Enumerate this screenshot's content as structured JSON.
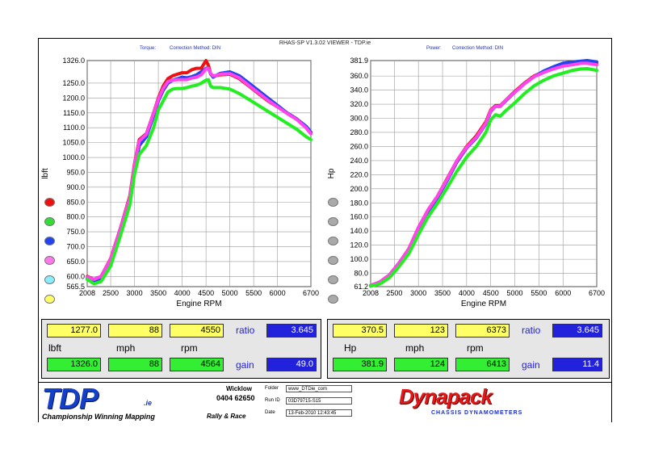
{
  "app_title": "RHAS-SP V1.3.02 VIEWER - TDP.ie",
  "colors": {
    "red": "#ee1111",
    "green": "#22ee22",
    "blue": "#2244ee",
    "pink": "#ff44ee",
    "panel_yellow": "#ffff66",
    "panel_green": "#33ee33",
    "panel_blue": "#2222dd"
  },
  "legend_dots": {
    "left": [
      "#ee1111",
      "#33dd33",
      "#2244ee",
      "#ff77ee",
      "#88eeff",
      "#ffff66"
    ],
    "right": [
      "#aaaaaa",
      "#aaaaaa",
      "#aaaaaa",
      "#aaaaaa",
      "#aaaaaa",
      "#aaaaaa"
    ]
  },
  "chart_data": [
    {
      "type": "line",
      "subtitle_label": "Torque:",
      "correction": "Correction Method: DIN",
      "ylabel": "lbft",
      "xlabel": "Engine RPM",
      "xlim": [
        2008,
        6700
      ],
      "ylim": [
        565.5,
        1326.0
      ],
      "x_ticks": [
        "2008",
        "2500",
        "3000",
        "3500",
        "4000",
        "4500",
        "5000",
        "5500",
        "6000",
        "6700"
      ],
      "x_tick_values": [
        2008,
        2500,
        3000,
        3500,
        4000,
        4500,
        5000,
        5500,
        6000,
        6700
      ],
      "y_ticks": [
        "1326.0",
        "1250.0",
        "1200.0",
        "1150.0",
        "1100.0",
        "1050.0",
        "1000.0",
        "950.0",
        "900.0",
        "850.0",
        "800.0",
        "750.0",
        "700.0",
        "650.0",
        "600.0",
        "565.5"
      ],
      "y_tick_values": [
        1326,
        1250,
        1200,
        1150,
        1100,
        1050,
        1000,
        950,
        900,
        850,
        800,
        750,
        700,
        650,
        600,
        565.5
      ],
      "grid": true,
      "x": [
        2008,
        2150,
        2300,
        2500,
        2700,
        2900,
        3000,
        3100,
        3250,
        3400,
        3500,
        3600,
        3700,
        3800,
        3900,
        4000,
        4100,
        4200,
        4300,
        4400,
        4500,
        4550,
        4600,
        4650,
        4700,
        4800,
        5000,
        5200,
        5400,
        5600,
        5800,
        6000,
        6200,
        6400,
        6600,
        6700
      ],
      "series": [
        {
          "color": "#ee1111",
          "values": [
            600,
            590,
            600,
            660,
            760,
            870,
            980,
            1060,
            1080,
            1150,
            1200,
            1240,
            1265,
            1275,
            1280,
            1285,
            1285,
            1295,
            1300,
            1300,
            1326,
            1310,
            1280,
            1275,
            1275,
            1278,
            1280,
            1265,
            1240,
            1215,
            1190,
            1170,
            1150,
            1130,
            1100,
            1080
          ]
        },
        {
          "color": "#2244ee",
          "values": [
            595,
            585,
            592,
            650,
            750,
            855,
            960,
            1040,
            1070,
            1140,
            1190,
            1225,
            1250,
            1260,
            1265,
            1270,
            1268,
            1272,
            1278,
            1288,
            1300,
            1300,
            1280,
            1270,
            1275,
            1283,
            1288,
            1275,
            1250,
            1225,
            1200,
            1175,
            1150,
            1130,
            1105,
            1085
          ]
        },
        {
          "color": "#ff44ee",
          "values": [
            598,
            590,
            600,
            658,
            758,
            865,
            975,
            1055,
            1078,
            1148,
            1196,
            1232,
            1255,
            1260,
            1262,
            1262,
            1262,
            1267,
            1270,
            1278,
            1298,
            1300,
            1282,
            1274,
            1276,
            1280,
            1282,
            1268,
            1242,
            1217,
            1192,
            1170,
            1148,
            1128,
            1100,
            1080
          ]
        },
        {
          "color": "#22ee22",
          "values": [
            590,
            575,
            583,
            635,
            735,
            840,
            945,
            1010,
            1040,
            1100,
            1160,
            1190,
            1220,
            1230,
            1232,
            1232,
            1235,
            1240,
            1243,
            1250,
            1260,
            1262,
            1240,
            1235,
            1235,
            1235,
            1230,
            1215,
            1195,
            1175,
            1155,
            1135,
            1115,
            1095,
            1070,
            1060
          ]
        }
      ],
      "readout": {
        "values_top": [
          "1277.0",
          "88",
          "4550"
        ],
        "ratio_label": "ratio",
        "ratio": "3.645",
        "unit_labels": [
          "lbft",
          "mph",
          "rpm"
        ],
        "values_bottom": [
          "1326.0",
          "88",
          "4564"
        ],
        "gain_label": "gain",
        "gain": "49.0"
      }
    },
    {
      "type": "line",
      "subtitle_label": "Power:",
      "correction": "Correction Method: DIN",
      "ylabel": "Hp",
      "xlabel": "Engine RPM",
      "xlim": [
        2008,
        6700
      ],
      "ylim": [
        61.2,
        381.9
      ],
      "x_ticks": [
        "2008",
        "2500",
        "3000",
        "3500",
        "4000",
        "4500",
        "5000",
        "5500",
        "6000",
        "6700"
      ],
      "x_tick_values": [
        2008,
        2500,
        3000,
        3500,
        4000,
        4500,
        5000,
        5500,
        6000,
        6700
      ],
      "y_ticks": [
        "381.9",
        "360.0",
        "340.0",
        "320.0",
        "300.0",
        "280.0",
        "260.0",
        "240.0",
        "220.0",
        "200.0",
        "180.0",
        "160.0",
        "140.0",
        "120.0",
        "100.0",
        "80.0",
        "61.2"
      ],
      "y_tick_values": [
        381.9,
        360,
        340,
        320,
        300,
        280,
        260,
        240,
        220,
        200,
        180,
        160,
        140,
        120,
        100,
        80,
        61.2
      ],
      "grid": true,
      "x": [
        2008,
        2200,
        2400,
        2600,
        2800,
        3000,
        3200,
        3400,
        3600,
        3800,
        4000,
        4200,
        4400,
        4500,
        4600,
        4700,
        4800,
        5000,
        5200,
        5400,
        5600,
        5800,
        6000,
        6200,
        6373,
        6500,
        6700
      ],
      "series": [
        {
          "color": "#ee1111",
          "values": [
            62,
            68,
            78,
            95,
            115,
            145,
            170,
            190,
            215,
            240,
            260,
            275,
            295,
            312,
            318,
            318,
            325,
            338,
            350,
            360,
            366,
            371,
            375,
            378,
            380,
            380,
            378
          ]
        },
        {
          "color": "#2244ee",
          "values": [
            62,
            67,
            77,
            94,
            113,
            143,
            168,
            188,
            212,
            238,
            258,
            272,
            292,
            310,
            317,
            317,
            324,
            337,
            349,
            359,
            367,
            373,
            378,
            380,
            381,
            381.9,
            380
          ]
        },
        {
          "color": "#ff44ee",
          "values": [
            63,
            68,
            78,
            95,
            115,
            145,
            170,
            190,
            214,
            240,
            259,
            273,
            293,
            311,
            317,
            317,
            325,
            337,
            349,
            359,
            365,
            370,
            374,
            376,
            378,
            378,
            376
          ]
        },
        {
          "color": "#22ee22",
          "values": [
            62,
            65,
            74,
            90,
            108,
            135,
            160,
            180,
            202,
            225,
            245,
            260,
            280,
            298,
            305,
            303,
            310,
            322,
            335,
            346,
            354,
            360,
            364,
            368,
            370,
            370.5,
            368
          ]
        }
      ],
      "readout": {
        "values_top": [
          "370.5",
          "123",
          "6373"
        ],
        "ratio_label": "ratio",
        "ratio": "3.645",
        "unit_labels": [
          "Hp",
          "mph",
          "rpm"
        ],
        "values_bottom": [
          "381.9",
          "124",
          "6413"
        ],
        "gain_label": "gain",
        "gain": "11.4"
      }
    }
  ],
  "footer": {
    "logo_tdp": "TDP",
    "logo_ie": ".ie",
    "tagline": "Championship Winning Mapping",
    "rally": "Rally & Race",
    "wicklow": "Wicklow",
    "phone": "0404 62650",
    "folder_label": "Folder",
    "folder": "www_DTDie_com",
    "run_label": "Run ID",
    "run_id": "03D79715-S15",
    "date_label": "Date",
    "date": "13-Feb-2010  12:43:45",
    "logo_dyna": "Dynapack",
    "dyna_sub": "CHASSIS DYNAMOMETERS"
  }
}
